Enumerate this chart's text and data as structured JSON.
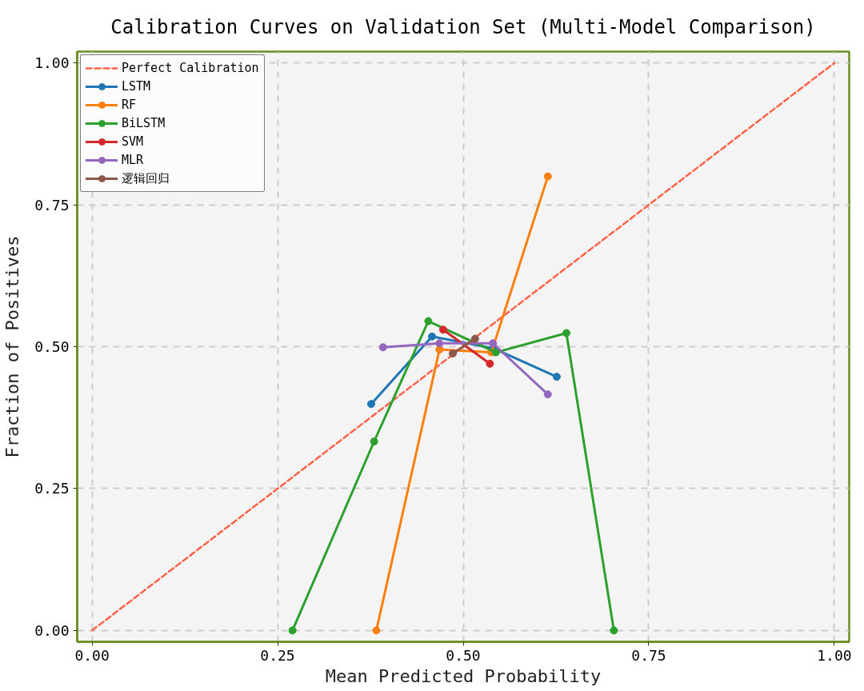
{
  "chart_data": {
    "type": "line",
    "title": "Calibration Curves on Validation Set (Multi-Model Comparison)",
    "xlabel": "Mean Predicted Probability",
    "ylabel": "Fraction of Positives",
    "xlim": [
      -0.02,
      1.02
    ],
    "ylim": [
      -0.02,
      1.02
    ],
    "xticks": [
      {
        "value": 0,
        "label": "0.00"
      },
      {
        "value": 0.25,
        "label": "0.25"
      },
      {
        "value": 0.5,
        "label": "0.50"
      },
      {
        "value": 0.75,
        "label": "0.75"
      },
      {
        "value": 1,
        "label": "1.00"
      }
    ],
    "yticks": [
      {
        "value": 0,
        "label": "0.00"
      },
      {
        "value": 0.25,
        "label": "0.25"
      },
      {
        "value": 0.5,
        "label": "0.50"
      },
      {
        "value": 0.75,
        "label": "0.75"
      },
      {
        "value": 1,
        "label": "1.00"
      }
    ],
    "grid": true,
    "legend": "top left",
    "marker": "circle",
    "line_style": "solid",
    "series": [
      {
        "name": "Perfect Calibration",
        "color": "#ff6347",
        "x": [
          0,
          1
        ],
        "values": [
          0,
          1
        ],
        "line_style": "dashed",
        "marker": "none"
      },
      {
        "name": "LSTM",
        "color": "#1f77b4",
        "x": [
          0.376,
          0.458,
          0.541,
          0.626
        ],
        "values": [
          0.399,
          0.518,
          0.497,
          0.447
        ]
      },
      {
        "name": "RF",
        "color": "#ff7f0e",
        "x": [
          0.383,
          0.468,
          0.538,
          0.614
        ],
        "values": [
          0.0,
          0.495,
          0.49,
          0.8
        ]
      },
      {
        "name": "BiLSTM",
        "color": "#2ca02c",
        "x": [
          0.27,
          0.38,
          0.453,
          0.544,
          0.639,
          0.703
        ],
        "values": [
          0.0,
          0.333,
          0.545,
          0.49,
          0.524,
          0.0
        ]
      },
      {
        "name": "SVM",
        "color": "#d62728",
        "x": [
          0.473,
          0.536
        ],
        "values": [
          0.53,
          0.47
        ]
      },
      {
        "name": "MLR",
        "color": "#9467bd",
        "x": [
          0.392,
          0.468,
          0.54,
          0.614
        ],
        "values": [
          0.499,
          0.506,
          0.506,
          0.416
        ]
      },
      {
        "name": "逻辑回归",
        "color": "#8c564b",
        "x": [
          0.486,
          0.516
        ],
        "values": [
          0.488,
          0.514
        ]
      }
    ]
  }
}
